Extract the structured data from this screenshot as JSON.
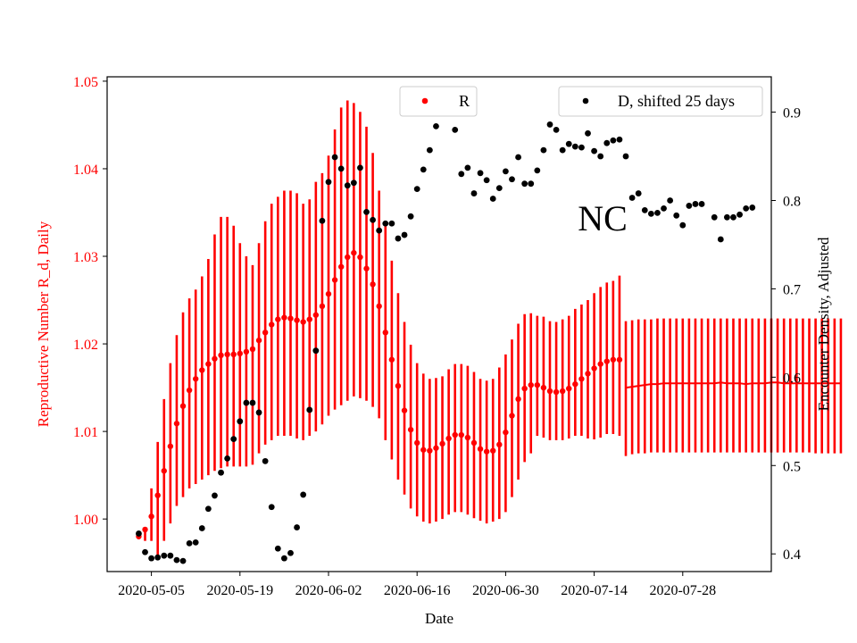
{
  "chart_data": {
    "type": "scatter",
    "region_label": "NC",
    "xlabel": "Date",
    "ylabel_left": "Reproductive Number R_d, Daily",
    "ylabel_right": "Encounter Density, Adjusted",
    "x_range": [
      "2020-04-28",
      "2020-08-11"
    ],
    "ylim_left": [
      0.994,
      1.0505
    ],
    "ylim_right": [
      0.38,
      0.94
    ],
    "x_ticks": [
      "2020-05-05",
      "2020-05-19",
      "2020-06-02",
      "2020-06-16",
      "2020-06-30",
      "2020-07-14",
      "2020-07-28"
    ],
    "y_ticks_left": [
      "1.00",
      "1.01",
      "1.02",
      "1.03",
      "1.04",
      "1.05"
    ],
    "y_ticks_right": [
      "0.4",
      "0.5",
      "0.6",
      "0.7",
      "0.8",
      "0.9"
    ],
    "grid": false,
    "colors": {
      "R": "#ff0000",
      "D": "#000000",
      "left_axis_text": "#ff0000"
    },
    "legend_R": {
      "label": "R",
      "placement": "top-center"
    },
    "legend_D": {
      "label": "D, shifted 25 days",
      "placement": "top-right"
    },
    "series": [
      {
        "name": "R",
        "axis": "left",
        "style": "points-with-error-bars",
        "start_date": "2020-05-03",
        "values": [
          0.998,
          0.9988,
          1.0003,
          1.0027,
          1.0055,
          1.0083,
          1.0109,
          1.0129,
          1.0147,
          1.016,
          1.017,
          1.0177,
          1.0183,
          1.0187,
          1.0188,
          1.0188,
          1.0189,
          1.0191,
          1.0194,
          1.0204,
          1.0213,
          1.0222,
          1.0228,
          1.023,
          1.0229,
          1.0227,
          1.0225,
          1.0228,
          1.0233,
          1.0243,
          1.0257,
          1.0273,
          1.0288,
          1.0299,
          1.0304,
          1.0299,
          1.0286,
          1.0268,
          1.0243,
          1.0213,
          1.0182,
          1.0152,
          1.0124,
          1.0102,
          1.0087,
          1.0079,
          1.0078,
          1.0081,
          1.0086,
          1.0092,
          1.0096,
          1.0096,
          1.0093,
          1.0087,
          1.008,
          1.0077,
          1.0078,
          1.0085,
          1.0099,
          1.0118,
          1.0137,
          1.0149,
          1.0153,
          1.0153,
          1.015,
          1.0146,
          1.0145,
          1.0146,
          1.0149,
          1.0154,
          1.016,
          1.0166,
          1.0172,
          1.0177,
          1.018,
          1.0182,
          1.0182
        ],
        "error_low": [
          0.9978,
          0.9975,
          0.9975,
          0.9955,
          0.9975,
          0.9995,
          1.0015,
          1.0025,
          1.0035,
          1.004,
          1.0045,
          1.005,
          1.0055,
          1.0058,
          1.006,
          1.006,
          1.006,
          1.006,
          1.0062,
          1.0075,
          1.0085,
          1.009,
          1.0095,
          1.0095,
          1.0095,
          1.0092,
          1.009,
          1.0095,
          1.01,
          1.0108,
          1.0118,
          1.0125,
          1.013,
          1.0135,
          1.014,
          1.0138,
          1.0135,
          1.0128,
          1.0115,
          1.009,
          1.0068,
          1.0045,
          1.0028,
          1.0012,
          1.0003,
          0.9997,
          0.9995,
          0.9997,
          1.0,
          1.0005,
          1.0008,
          1.0008,
          1.0005,
          1.0001,
          0.9998,
          0.9995,
          0.9997,
          1.0,
          1.0008,
          1.0025,
          1.0045,
          1.0065,
          1.0075,
          1.0095,
          1.0093,
          1.009,
          1.009,
          1.009,
          1.0092,
          1.0095,
          1.0095,
          1.0092,
          1.0091,
          1.0093,
          1.0097,
          1.0097,
          1.0095
        ],
        "error_high": [
          0.9985,
          0.9988,
          1.0035,
          1.0088,
          1.0137,
          1.0178,
          1.021,
          1.0236,
          1.0252,
          1.0262,
          1.0277,
          1.0297,
          1.0325,
          1.0345,
          1.0345,
          1.0335,
          1.0315,
          1.03,
          1.029,
          1.0315,
          1.034,
          1.036,
          1.0368,
          1.0375,
          1.0375,
          1.0372,
          1.036,
          1.0365,
          1.0385,
          1.0395,
          1.0415,
          1.0445,
          1.047,
          1.0478,
          1.0475,
          1.0465,
          1.0448,
          1.0418,
          1.0375,
          1.0335,
          1.0295,
          1.0258,
          1.0225,
          1.0199,
          1.0178,
          1.0166,
          1.016,
          1.0161,
          1.0163,
          1.0171,
          1.0177,
          1.0177,
          1.0175,
          1.0168,
          1.016,
          1.0158,
          1.016,
          1.0173,
          1.0188,
          1.0205,
          1.0223,
          1.0234,
          1.0235,
          1.0232,
          1.0231,
          1.0226,
          1.0225,
          1.0228,
          1.0232,
          1.024,
          1.0245,
          1.025,
          1.0258,
          1.0265,
          1.027,
          1.0272,
          1.0278
        ]
      },
      {
        "name": "R",
        "axis": "left",
        "style": "line-with-error-bars",
        "start_date": "2020-07-19",
        "values": [
          1.015,
          1.0151,
          1.0152,
          1.0153,
          1.0154,
          1.0154,
          1.0155,
          1.0155,
          1.0155,
          1.0155,
          1.0155,
          1.0155,
          1.0155,
          1.0155,
          1.0155,
          1.0156,
          1.0155,
          1.0155,
          1.0155,
          1.0154,
          1.0155,
          1.0155,
          1.0155,
          1.0156,
          1.0156,
          1.0155,
          1.0155,
          1.0155,
          1.0155,
          1.0155,
          1.0155,
          1.0155,
          1.0155,
          1.0155,
          1.0155
        ],
        "error_low": [
          1.0072,
          1.0074,
          1.0075,
          1.0075,
          1.0076,
          1.0076,
          1.0076,
          1.0076,
          1.0076,
          1.0076,
          1.0076,
          1.0076,
          1.0076,
          1.0076,
          1.0076,
          1.0076,
          1.0076,
          1.0076,
          1.0076,
          1.0076,
          1.0076,
          1.0076,
          1.0076,
          1.0076,
          1.0076,
          1.0076,
          1.0076,
          1.0076,
          1.0076,
          1.0076,
          1.0075,
          1.0075,
          1.0075,
          1.0075,
          1.0075
        ],
        "error_high": [
          1.0226,
          1.0227,
          1.0228,
          1.0228,
          1.0228,
          1.0229,
          1.0229,
          1.0229,
          1.0229,
          1.0229,
          1.0229,
          1.0229,
          1.0229,
          1.0229,
          1.0229,
          1.0229,
          1.0229,
          1.0229,
          1.0229,
          1.0229,
          1.0229,
          1.0229,
          1.0229,
          1.0229,
          1.0229,
          1.0229,
          1.0229,
          1.0229,
          1.0229,
          1.0229,
          1.0229,
          1.0229,
          1.0229,
          1.0229,
          1.0229
        ]
      },
      {
        "name": "D, shifted 25 days",
        "axis": "right",
        "style": "points",
        "points": [
          [
            "2020-05-03",
            0.423
          ],
          [
            "2020-05-04",
            0.402
          ],
          [
            "2020-05-05",
            0.395
          ],
          [
            "2020-05-06",
            0.396
          ],
          [
            "2020-05-07",
            0.398
          ],
          [
            "2020-05-08",
            0.398
          ],
          [
            "2020-05-09",
            0.393
          ],
          [
            "2020-05-10",
            0.392
          ],
          [
            "2020-05-11",
            0.412
          ],
          [
            "2020-05-12",
            0.413
          ],
          [
            "2020-05-13",
            0.429
          ],
          [
            "2020-05-14",
            0.451
          ],
          [
            "2020-05-15",
            0.466
          ],
          [
            "2020-05-16",
            0.492
          ],
          [
            "2020-05-17",
            0.508
          ],
          [
            "2020-05-18",
            0.53
          ],
          [
            "2020-05-19",
            0.55
          ],
          [
            "2020-05-20",
            0.571
          ],
          [
            "2020-05-21",
            0.571
          ],
          [
            "2020-05-22",
            0.56
          ],
          [
            "2020-05-23",
            0.505
          ],
          [
            "2020-05-24",
            0.453
          ],
          [
            "2020-05-25",
            0.406
          ],
          [
            "2020-05-26",
            0.395
          ],
          [
            "2020-05-27",
            0.401
          ],
          [
            "2020-05-28",
            0.43
          ],
          [
            "2020-05-29",
            0.467
          ],
          [
            "2020-05-30",
            0.563
          ],
          [
            "2020-05-31",
            0.63
          ],
          [
            "2020-06-01",
            0.777
          ],
          [
            "2020-06-02",
            0.821
          ],
          [
            "2020-06-03",
            0.849
          ],
          [
            "2020-06-04",
            0.836
          ],
          [
            "2020-06-05",
            0.817
          ],
          [
            "2020-06-06",
            0.82
          ],
          [
            "2020-06-07",
            0.837
          ],
          [
            "2020-06-08",
            0.787
          ],
          [
            "2020-06-09",
            0.778
          ],
          [
            "2020-06-10",
            0.766
          ],
          [
            "2020-06-11",
            0.774
          ],
          [
            "2020-06-12",
            0.774
          ],
          [
            "2020-06-13",
            0.757
          ],
          [
            "2020-06-14",
            0.761
          ],
          [
            "2020-06-15",
            0.782
          ],
          [
            "2020-06-16",
            0.813
          ],
          [
            "2020-06-17",
            0.835
          ],
          [
            "2020-06-18",
            0.857
          ],
          [
            "2020-06-19",
            0.884
          ],
          [
            "2020-06-20",
            0.913
          ],
          [
            "2020-06-21",
            0.916
          ],
          [
            "2020-06-22",
            0.88
          ],
          [
            "2020-06-23",
            0.83
          ],
          [
            "2020-06-24",
            0.837
          ],
          [
            "2020-06-25",
            0.808
          ],
          [
            "2020-06-26",
            0.831
          ],
          [
            "2020-06-27",
            0.823
          ],
          [
            "2020-06-28",
            0.802
          ],
          [
            "2020-06-29",
            0.814
          ],
          [
            "2020-06-30",
            0.833
          ],
          [
            "2020-07-01",
            0.824
          ],
          [
            "2020-07-02",
            0.849
          ],
          [
            "2020-07-03",
            0.819
          ],
          [
            "2020-07-04",
            0.819
          ],
          [
            "2020-07-05",
            0.834
          ],
          [
            "2020-07-06",
            0.857
          ],
          [
            "2020-07-07",
            0.886
          ],
          [
            "2020-07-08",
            0.88
          ],
          [
            "2020-07-09",
            0.857
          ],
          [
            "2020-07-10",
            0.864
          ],
          [
            "2020-07-11",
            0.861
          ],
          [
            "2020-07-12",
            0.86
          ],
          [
            "2020-07-13",
            0.876
          ],
          [
            "2020-07-14",
            0.856
          ],
          [
            "2020-07-15",
            0.85
          ],
          [
            "2020-07-16",
            0.865
          ],
          [
            "2020-07-17",
            0.868
          ],
          [
            "2020-07-18",
            0.869
          ],
          [
            "2020-07-19",
            0.85
          ],
          [
            "2020-07-20",
            0.803
          ],
          [
            "2020-07-21",
            0.808
          ],
          [
            "2020-07-22",
            0.789
          ],
          [
            "2020-07-23",
            0.785
          ],
          [
            "2020-07-24",
            0.786
          ],
          [
            "2020-07-25",
            0.791
          ],
          [
            "2020-07-26",
            0.8
          ],
          [
            "2020-07-27",
            0.783
          ],
          [
            "2020-07-28",
            0.772
          ],
          [
            "2020-07-29",
            0.794
          ],
          [
            "2020-07-30",
            0.796
          ],
          [
            "2020-07-31",
            0.796
          ],
          [
            "2020-08-02",
            0.781
          ],
          [
            "2020-08-03",
            0.756
          ],
          [
            "2020-08-04",
            0.781
          ],
          [
            "2020-08-05",
            0.781
          ],
          [
            "2020-08-06",
            0.784
          ],
          [
            "2020-08-07",
            0.791
          ],
          [
            "2020-08-08",
            0.792
          ]
        ]
      }
    ]
  }
}
